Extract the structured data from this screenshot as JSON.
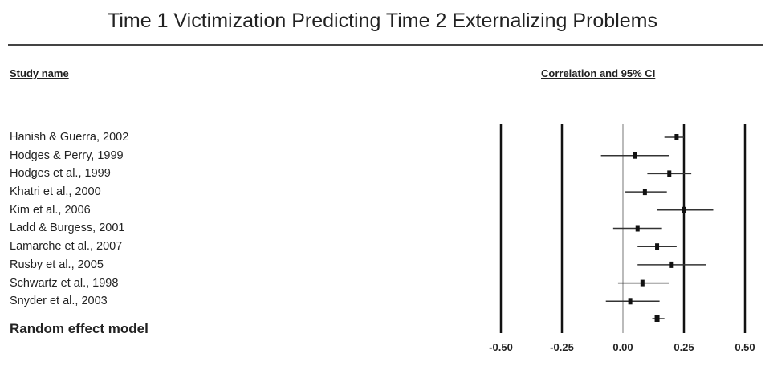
{
  "title": "Time 1 Victimization Predicting Time 2 Externalizing Problems",
  "header": {
    "study_col": "Study name",
    "ci_col": "Correlation and 95% CI"
  },
  "chart_data": {
    "type": "forest",
    "title": "Time 1 Victimization Predicting Time 2 Externalizing Problems",
    "xlabel": "Correlation and 95% CI",
    "ylabel": "Study name",
    "xlim": [
      -0.5,
      0.5
    ],
    "xticks": [
      -0.5,
      -0.25,
      0.0,
      0.25,
      0.5
    ],
    "xtick_labels": [
      "-0.50",
      "-0.25",
      "0.00",
      "0.25",
      "0.50"
    ],
    "studies": [
      {
        "name": "Hanish & Guerra, 2002",
        "r": 0.22,
        "lower": 0.17,
        "upper": 0.25
      },
      {
        "name": "Hodges & Perry, 1999",
        "r": 0.05,
        "lower": -0.09,
        "upper": 0.19
      },
      {
        "name": "Hodges et al., 1999",
        "r": 0.19,
        "lower": 0.1,
        "upper": 0.28
      },
      {
        "name": "Khatri et al., 2000",
        "r": 0.09,
        "lower": 0.01,
        "upper": 0.18
      },
      {
        "name": "Kim et al., 2006",
        "r": 0.25,
        "lower": 0.14,
        "upper": 0.37
      },
      {
        "name": "Ladd & Burgess, 2001",
        "r": 0.06,
        "lower": -0.04,
        "upper": 0.16
      },
      {
        "name": "Lamarche et al., 2007",
        "r": 0.14,
        "lower": 0.06,
        "upper": 0.22
      },
      {
        "name": "Rusby et al., 2005",
        "r": 0.2,
        "lower": 0.06,
        "upper": 0.34
      },
      {
        "name": "Schwartz et al., 1998",
        "r": 0.08,
        "lower": -0.02,
        "upper": 0.19
      },
      {
        "name": "Snyder et al., 2003",
        "r": 0.03,
        "lower": -0.07,
        "upper": 0.15
      }
    ],
    "summary": {
      "name": "Random effect model",
      "r": 0.14,
      "lower": 0.12,
      "upper": 0.17
    }
  }
}
